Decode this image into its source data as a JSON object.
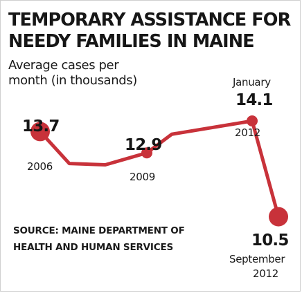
{
  "header": {
    "title_line1": "TEMPORARY ASSISTANCE FOR",
    "title_line2": "NEEDY FAMILIES IN MAINE",
    "subtitle_line1": "Average cases per",
    "subtitle_line2": "month (in thousands)"
  },
  "footer": {
    "source_line1": "SOURCE: MAINE DEPARTMENT OF",
    "source_line2": "HEALTH AND HUMAN SERVICES"
  },
  "colors": {
    "line": "#c8323a",
    "marker": "#c8323a",
    "text": "#1a1a1a"
  },
  "chart_data": {
    "type": "line",
    "title": "TEMPORARY ASSISTANCE FOR NEEDY FAMILIES IN MAINE",
    "ylabel": "Average cases per month (in thousands)",
    "xlabel": "",
    "grid": false,
    "series": [
      {
        "values": [
          13.7,
          12.5,
          12.45,
          12.9,
          13.6,
          14.1,
          10.5
        ]
      }
    ],
    "highlights": [
      {
        "point_index": 0,
        "value": "13.7",
        "date": "2006",
        "date_extra": ""
      },
      {
        "point_index": 3,
        "value": "12.9",
        "date": "2009",
        "date_extra": ""
      },
      {
        "point_index": 5,
        "value": "14.1",
        "date": "2012",
        "date_extra": "January"
      },
      {
        "point_index": 6,
        "value": "10.5",
        "date": "2012",
        "date_extra": "September"
      }
    ]
  }
}
